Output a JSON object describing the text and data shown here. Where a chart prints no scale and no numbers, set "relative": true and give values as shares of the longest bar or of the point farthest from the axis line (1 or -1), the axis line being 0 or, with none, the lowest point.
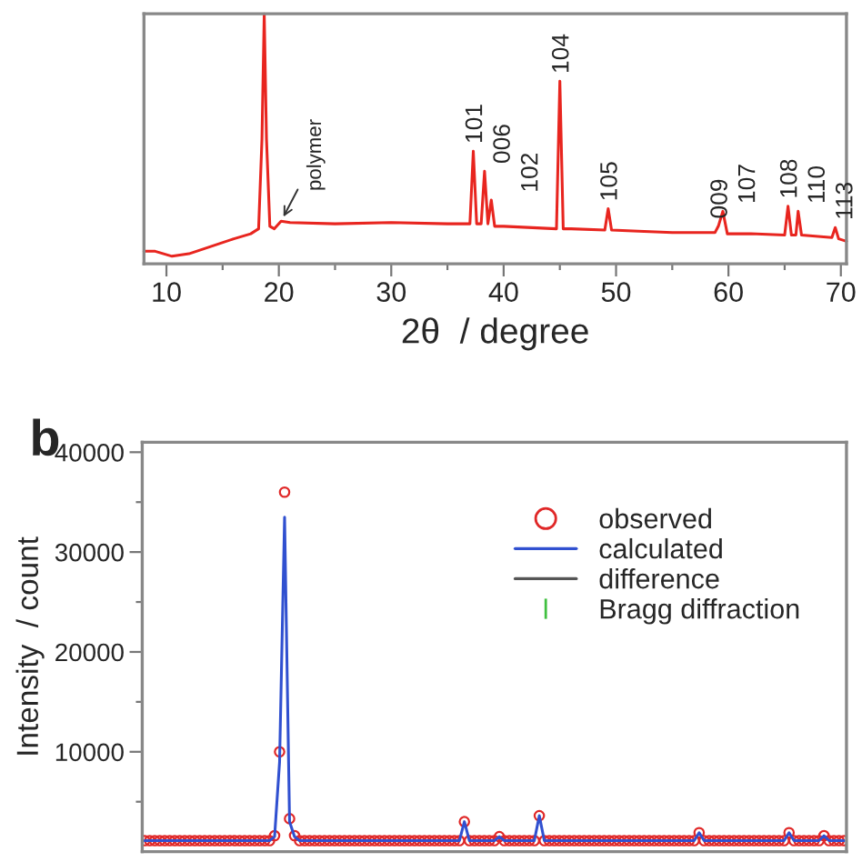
{
  "chart_data": [
    {
      "type": "line",
      "relative": true,
      "xlabel": "2θ  / degree",
      "xlim": [
        8,
        70.5
      ],
      "xticks": [
        10,
        {
          "value": 15,
          "label": null
        },
        20,
        {
          "value": 25,
          "label": null
        },
        30,
        {
          "value": 35,
          "label": null
        },
        40,
        {
          "value": 45,
          "label": null
        },
        50,
        {
          "value": 55,
          "label": null
        },
        60,
        {
          "value": 65,
          "label": null
        },
        70
      ],
      "tick_labels": "x",
      "grid": false,
      "legend": false,
      "x": [
        8,
        9,
        10.5,
        12,
        14,
        16,
        17.5,
        18.2,
        18.5,
        18.7,
        18.9,
        19.2,
        19.6,
        20.2,
        21,
        25,
        30,
        35,
        37.0,
        37.3,
        37.6,
        38.0,
        38.3,
        38.6,
        38.9,
        39.2,
        40,
        44.7,
        45.0,
        45.3,
        46,
        49.0,
        49.3,
        49.6,
        52,
        55,
        58.8,
        59.1,
        59.5,
        59.9,
        62,
        65.0,
        65.3,
        65.6,
        66.0,
        66.2,
        66.5,
        69.2,
        69.5,
        69.8,
        70.5
      ],
      "series": [
        {
          "color": "#e8251f",
          "values": [
            0.05,
            0.05,
            0.03,
            0.04,
            0.07,
            0.1,
            0.12,
            0.14,
            0.5,
            1,
            0.5,
            0.15,
            0.14,
            0.17,
            0.165,
            0.16,
            0.165,
            0.16,
            0.16,
            0.45,
            0.16,
            0.16,
            0.37,
            0.16,
            0.255,
            0.15,
            0.15,
            0.14,
            0.73,
            0.14,
            0.14,
            0.135,
            0.22,
            0.135,
            0.13,
            0.125,
            0.125,
            0.15,
            0.21,
            0.12,
            0.12,
            0.115,
            0.23,
            0.115,
            0.115,
            0.21,
            0.115,
            0.105,
            0.145,
            0.1,
            0.09
          ]
        }
      ],
      "annotations": [
        {
          "text": "polymer",
          "x": 20.2,
          "y": 0.17
        },
        {
          "text": "101",
          "x": 37.3,
          "y": 0.45
        },
        {
          "text": "006",
          "x": 38.3,
          "y": 0.37
        },
        {
          "text": "102",
          "x": 38.9,
          "y": 0.255
        },
        {
          "text": "104",
          "x": 45.0,
          "y": 0.73
        },
        {
          "text": "105",
          "x": 49.3,
          "y": 0.22
        },
        {
          "text": "009",
          "x": 59.1,
          "y": 0.15
        },
        {
          "text": "107",
          "x": 59.5,
          "y": 0.21
        },
        {
          "text": "108",
          "x": 65.3,
          "y": 0.23
        },
        {
          "text": "110",
          "x": 66.2,
          "y": 0.21
        },
        {
          "text": "113",
          "x": 69.5,
          "y": 0.145
        }
      ]
    },
    {
      "type": "line",
      "ylabel": "Intensity  / count",
      "ylim": [
        0,
        41000
      ],
      "yticks": [
        {
          "value": 5000,
          "label": null
        },
        10000,
        {
          "value": 15000,
          "label": null
        },
        20000,
        {
          "value": 25000,
          "label": null
        },
        30000,
        {
          "value": 35000,
          "label": null
        },
        40000
      ],
      "tick_labels": "y",
      "grid": false,
      "legend": "top right",
      "annotations": [
        "b"
      ],
      "categories": [
        null,
        null,
        null,
        null,
        null,
        null,
        null,
        null,
        null,
        null,
        null,
        null,
        null,
        null,
        null,
        null,
        null,
        null,
        null,
        null,
        null,
        null,
        null,
        null,
        null,
        null,
        null,
        null,
        null,
        null,
        null,
        null,
        null,
        null,
        null,
        null,
        null,
        null,
        null,
        null,
        null,
        null,
        null,
        null,
        null,
        null,
        null,
        null,
        null,
        null,
        null,
        null,
        null,
        null,
        null,
        null,
        null,
        null,
        null,
        null,
        null,
        null,
        null,
        null,
        null,
        null,
        null,
        null,
        null,
        null,
        null,
        null,
        null,
        null,
        null,
        null,
        null,
        null,
        null,
        null,
        null,
        null,
        null,
        null,
        null,
        null,
        null,
        null,
        null,
        null,
        null,
        null,
        null,
        null,
        null,
        null,
        null,
        null,
        null,
        null,
        null,
        null,
        null,
        null,
        null,
        null,
        null,
        null,
        null,
        null,
        null,
        null,
        null,
        null,
        null,
        null,
        null,
        null,
        null,
        null,
        null,
        null,
        null,
        null,
        null,
        null,
        null,
        null,
        null,
        null,
        null,
        null,
        null,
        null,
        null,
        null,
        null,
        null,
        null,
        null,
        null
      ],
      "series": [
        {
          "name": "observed",
          "type": "scatter",
          "marker": "circle",
          "color": "#e02828",
          "values": [
            1100,
            1100,
            1100,
            1100,
            1100,
            1100,
            1100,
            1100,
            1100,
            1100,
            1100,
            1100,
            1100,
            1100,
            1100,
            1100,
            1100,
            1100,
            1100,
            1100,
            1100,
            1100,
            1100,
            1100,
            1100,
            1100,
            1600,
            10000,
            36000,
            3300,
            1600,
            1100,
            1100,
            1100,
            1100,
            1100,
            1100,
            1100,
            1100,
            1100,
            1100,
            1100,
            1100,
            1100,
            1100,
            1100,
            1100,
            1100,
            1100,
            1100,
            1100,
            1100,
            1100,
            1100,
            1100,
            1100,
            1100,
            1100,
            1100,
            1100,
            1100,
            1100,
            1100,
            1100,
            3000,
            1100,
            1100,
            1100,
            1100,
            1100,
            1100,
            1500,
            1100,
            1100,
            1100,
            1100,
            1100,
            1100,
            1100,
            3600,
            1100,
            1100,
            1100,
            1100,
            1100,
            1100,
            1100,
            1100,
            1100,
            1100,
            1100,
            1100,
            1100,
            1100,
            1100,
            1100,
            1100,
            1100,
            1100,
            1100,
            1100,
            1100,
            1100,
            1100,
            1100,
            1100,
            1100,
            1100,
            1100,
            1100,
            1100,
            1900,
            1100,
            1100,
            1100,
            1100,
            1100,
            1100,
            1100,
            1100,
            1100,
            1100,
            1100,
            1100,
            1100,
            1100,
            1100,
            1100,
            1100,
            1900,
            1100,
            1100,
            1100,
            1100,
            1100,
            1100,
            1600,
            1100,
            1100,
            1100,
            1100
          ]
        },
        {
          "name": "calculated",
          "type": "line",
          "color": "#3050d0",
          "values": [
            1100,
            1100,
            1100,
            1100,
            1100,
            1100,
            1100,
            1100,
            1100,
            1100,
            1100,
            1100,
            1100,
            1100,
            1100,
            1100,
            1100,
            1100,
            1100,
            1100,
            1100,
            1100,
            1100,
            1100,
            1100,
            1100,
            1500,
            9000,
            33500,
            3000,
            1500,
            1100,
            1100,
            1100,
            1100,
            1100,
            1100,
            1100,
            1100,
            1100,
            1100,
            1100,
            1100,
            1100,
            1100,
            1100,
            1100,
            1100,
            1100,
            1100,
            1100,
            1100,
            1100,
            1100,
            1100,
            1100,
            1100,
            1100,
            1100,
            1100,
            1100,
            1100,
            1100,
            1100,
            3000,
            1100,
            1100,
            1100,
            1100,
            1100,
            1100,
            1500,
            1100,
            1100,
            1100,
            1100,
            1100,
            1100,
            1100,
            3600,
            1100,
            1100,
            1100,
            1100,
            1100,
            1100,
            1100,
            1100,
            1100,
            1100,
            1100,
            1100,
            1100,
            1100,
            1100,
            1100,
            1100,
            1100,
            1100,
            1100,
            1100,
            1100,
            1100,
            1100,
            1100,
            1100,
            1100,
            1100,
            1100,
            1100,
            1100,
            1900,
            1100,
            1100,
            1100,
            1100,
            1100,
            1100,
            1100,
            1100,
            1100,
            1100,
            1100,
            1100,
            1100,
            1100,
            1100,
            1100,
            1100,
            1900,
            1100,
            1100,
            1100,
            1100,
            1100,
            1100,
            1600,
            1100,
            1100,
            1100,
            1100
          ]
        },
        {
          "name": "difference",
          "type": "line",
          "color": "#555555",
          "values": [
            null,
            null,
            null,
            null,
            null,
            null,
            null,
            null,
            null,
            null,
            null,
            null,
            null,
            null,
            null,
            null,
            null,
            null,
            null,
            null,
            null,
            null,
            null,
            null,
            null,
            null,
            null,
            null,
            null,
            null,
            null,
            null,
            null,
            null,
            null,
            null,
            null,
            null,
            null,
            null,
            null,
            null,
            null,
            null,
            null,
            null,
            null,
            null,
            null,
            null,
            null,
            null,
            null,
            null,
            null,
            null,
            null,
            null,
            null,
            null,
            null,
            null,
            null,
            null,
            null,
            null,
            null,
            null,
            null,
            null,
            null,
            null,
            null,
            null,
            null,
            null,
            null,
            null,
            null,
            null,
            null,
            null,
            null,
            null,
            null,
            null,
            null,
            null,
            null,
            null,
            null,
            null,
            null,
            null,
            null,
            null,
            null,
            null,
            null,
            null,
            null,
            null,
            null,
            null,
            null,
            null,
            null,
            null,
            null,
            null,
            null,
            null,
            null,
            null,
            null,
            null,
            null,
            null,
            null,
            null,
            null,
            null,
            null,
            null,
            null,
            null,
            null,
            null,
            null,
            null,
            null,
            null,
            null,
            null,
            null,
            null,
            null,
            null,
            null,
            null,
            null
          ]
        },
        {
          "name": "Bragg diffraction",
          "type": "scatter",
          "marker": "vline",
          "color": "#40c040",
          "values": [
            null,
            null,
            null,
            null,
            null,
            null,
            null,
            null,
            null,
            null,
            null,
            null,
            null,
            null,
            null,
            null,
            null,
            null,
            null,
            null,
            null,
            null,
            null,
            null,
            null,
            null,
            null,
            null,
            null,
            null,
            null,
            null,
            null,
            null,
            null,
            null,
            null,
            null,
            null,
            null,
            null,
            null,
            null,
            null,
            null,
            null,
            null,
            null,
            null,
            null,
            null,
            null,
            null,
            null,
            null,
            null,
            null,
            null,
            null,
            null,
            null,
            null,
            null,
            null,
            null,
            null,
            null,
            null,
            null,
            null,
            null,
            null,
            null,
            null,
            null,
            null,
            null,
            null,
            null,
            null,
            null,
            null,
            null,
            null,
            null,
            null,
            null,
            null,
            null,
            null,
            null,
            null,
            null,
            null,
            null,
            null,
            null,
            null,
            null,
            null,
            null,
            null,
            null,
            null,
            null,
            null,
            null,
            null,
            null,
            null,
            null,
            null,
            null,
            null,
            null,
            null,
            null,
            null,
            null,
            null,
            null,
            null,
            null,
            null,
            null,
            null,
            null,
            null,
            null,
            null,
            null,
            null,
            null,
            null,
            null,
            null,
            null,
            null,
            null,
            null,
            null
          ]
        }
      ]
    }
  ]
}
